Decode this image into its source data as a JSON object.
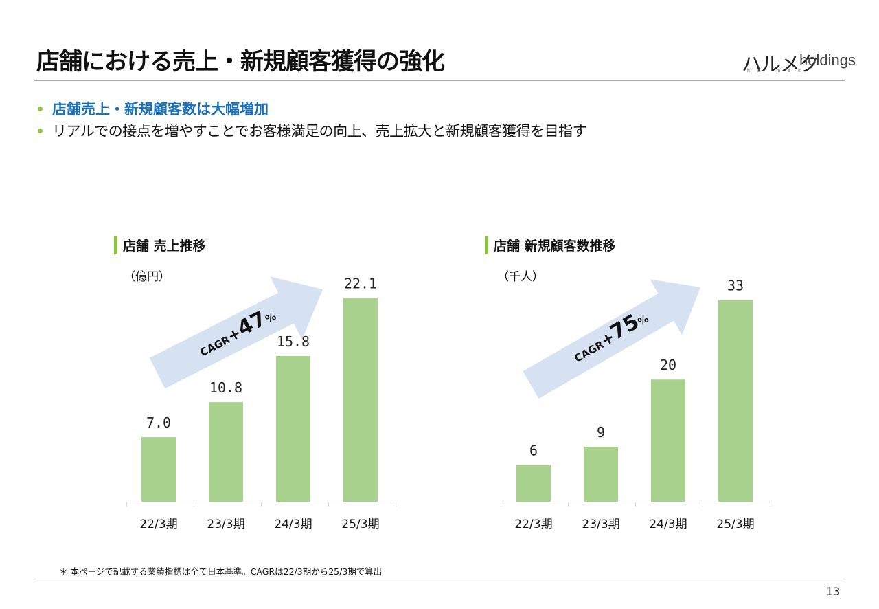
{
  "title": "店舗における売上・新規顧客獲得の強化",
  "logo": {
    "jp": "ハルメク",
    "en": "holdings",
    "sub": "halmek"
  },
  "bullets": [
    "店舗売上・新規顧客数は大幅増加",
    "リアルでの接点を増やすことでお客様満足の向上、売上拡大と新規顧客獲得を目指す"
  ],
  "footnote": "＊ 本ページで記載する業績指標は全て日本基準。CAGRは22/3期から25/3期で算出",
  "page_number": "13",
  "colors": {
    "bar": "#a9d18e",
    "accent": "#8cc63f",
    "arrow": "#d6e1f1",
    "highlight": "#1a6fb8"
  },
  "chart_data": [
    {
      "type": "bar",
      "title": "店舗 売上推移",
      "unit_label": "（億円）",
      "categories": [
        "22/3期",
        "23/3期",
        "24/3期",
        "25/3期"
      ],
      "values": [
        7.0,
        10.8,
        15.8,
        22.1
      ],
      "labels": [
        "7.0",
        "10.8",
        "15.8",
        "22.1"
      ],
      "ylim": [
        0,
        24
      ],
      "annotation": {
        "cagr": "CAGR",
        "plus": "+",
        "value": "47",
        "percent": "%"
      }
    },
    {
      "type": "bar",
      "title": "店舗 新規顧客数推移",
      "unit_label": "（千人）",
      "categories": [
        "22/3期",
        "23/3期",
        "24/3期",
        "25/3期"
      ],
      "values": [
        6,
        9,
        20,
        33
      ],
      "labels": [
        "6",
        "9",
        "20",
        "33"
      ],
      "ylim": [
        0,
        36
      ],
      "annotation": {
        "cagr": "CAGR",
        "plus": "+",
        "value": "75",
        "percent": "%"
      }
    }
  ]
}
